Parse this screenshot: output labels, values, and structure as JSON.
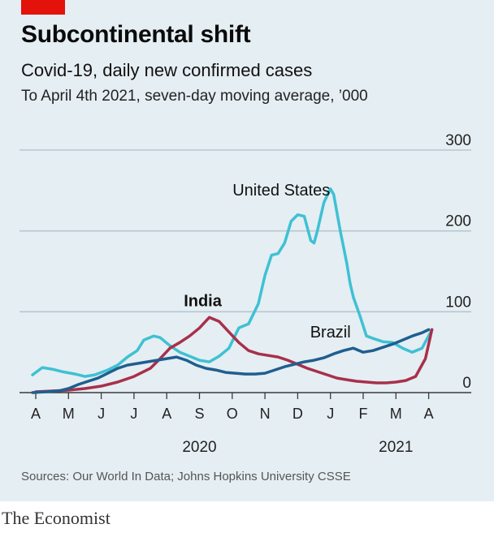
{
  "title": "Subcontinental shift",
  "subtitle": "Covid-19, daily new confirmed cases",
  "note": "To April 4th 2021, seven-day moving average, ’000",
  "source": "Sources: Our World In Data; Johns Hopkins University CSSE",
  "brand": "The Economist",
  "colors": {
    "background": "#e5eef3",
    "accent_red": "#e3120b",
    "gridline": "#b9c6d0",
    "axis": "#3a3a3a"
  },
  "chart_data": {
    "type": "line",
    "title": "Subcontinental shift",
    "subtitle": "Covid-19, daily new confirmed cases",
    "ylabel": "",
    "xlabel": "",
    "ylim": [
      0,
      300
    ],
    "y_ticks": [
      "0",
      "100",
      "200",
      "300"
    ],
    "y_tick_values": [
      0,
      100,
      200,
      300
    ],
    "x_range": [
      0,
      12.6
    ],
    "month_ticks": [
      "A",
      "M",
      "J",
      "J",
      "A",
      "S",
      "O",
      "N",
      "D",
      "J",
      "F",
      "M",
      "A"
    ],
    "year_labels": [
      {
        "label": "2020",
        "x": 5.0
      },
      {
        "label": "2021",
        "x": 11.0
      }
    ],
    "grid": true,
    "legend": "inline-labels",
    "series": [
      {
        "name": "United States",
        "color": "#3ec1d3",
        "width": 3.5,
        "label_x": 7.5,
        "label_y": 244,
        "label_anchor": "middle",
        "label_bold": false,
        "x": [
          -0.1,
          0.2,
          0.5,
          0.8,
          1.2,
          1.5,
          1.8,
          2.2,
          2.5,
          2.8,
          3.1,
          3.3,
          3.6,
          3.8,
          4.1,
          4.4,
          4.7,
          5.0,
          5.3,
          5.6,
          5.9,
          6.2,
          6.5,
          6.8,
          7.0,
          7.2,
          7.4,
          7.6,
          7.8,
          8.0,
          8.2,
          8.4,
          8.5,
          8.6,
          8.8,
          9.0,
          9.1,
          9.3,
          9.5,
          9.6,
          9.7,
          9.9,
          10.1,
          10.3,
          10.6,
          10.9,
          11.2,
          11.5,
          11.8,
          12.1
        ],
        "y": [
          22,
          31,
          29,
          26,
          23,
          20,
          22,
          28,
          34,
          44,
          52,
          65,
          70,
          68,
          58,
          50,
          45,
          40,
          38,
          45,
          55,
          80,
          85,
          110,
          145,
          170,
          172,
          185,
          212,
          220,
          218,
          188,
          185,
          200,
          235,
          252,
          245,
          200,
          160,
          135,
          118,
          95,
          70,
          67,
          63,
          62,
          55,
          50,
          55,
          78
        ]
      },
      {
        "name": "India",
        "color": "#a8304a",
        "width": 3.5,
        "label_x": 5.1,
        "label_y": 107,
        "label_anchor": "middle",
        "label_bold": true,
        "x": [
          0.0,
          0.5,
          1.0,
          1.5,
          2.0,
          2.5,
          3.0,
          3.5,
          3.8,
          4.1,
          4.4,
          4.7,
          5.0,
          5.3,
          5.6,
          5.9,
          6.2,
          6.5,
          6.8,
          7.1,
          7.4,
          7.7,
          8.0,
          8.3,
          8.6,
          8.9,
          9.2,
          9.5,
          9.8,
          10.1,
          10.4,
          10.7,
          11.0,
          11.3,
          11.6,
          11.9,
          12.1
        ],
        "y": [
          1,
          2,
          3,
          5,
          8,
          13,
          20,
          30,
          42,
          55,
          62,
          70,
          80,
          93,
          88,
          75,
          62,
          52,
          48,
          46,
          44,
          40,
          35,
          30,
          26,
          22,
          18,
          16,
          14,
          13,
          12,
          12,
          13,
          15,
          20,
          42,
          78
        ]
      },
      {
        "name": "Brazil",
        "color": "#1f5e8f",
        "width": 3.5,
        "label_x": 9.0,
        "label_y": 68,
        "label_anchor": "middle",
        "label_bold": false,
        "x": [
          -0.1,
          0.3,
          0.7,
          1.0,
          1.3,
          1.6,
          1.9,
          2.2,
          2.5,
          2.8,
          3.1,
          3.4,
          3.7,
          4.0,
          4.3,
          4.6,
          4.9,
          5.2,
          5.5,
          5.8,
          6.1,
          6.4,
          6.7,
          7.0,
          7.3,
          7.6,
          7.9,
          8.2,
          8.5,
          8.8,
          9.1,
          9.4,
          9.7,
          10.0,
          10.3,
          10.6,
          10.9,
          11.2,
          11.5,
          11.8,
          12.0
        ],
        "y": [
          0,
          1,
          2,
          5,
          10,
          14,
          18,
          24,
          30,
          34,
          36,
          38,
          40,
          42,
          44,
          40,
          34,
          30,
          28,
          25,
          24,
          23,
          23,
          24,
          28,
          32,
          35,
          38,
          40,
          43,
          48,
          52,
          55,
          50,
          52,
          56,
          60,
          65,
          70,
          74,
          78
        ]
      }
    ]
  }
}
